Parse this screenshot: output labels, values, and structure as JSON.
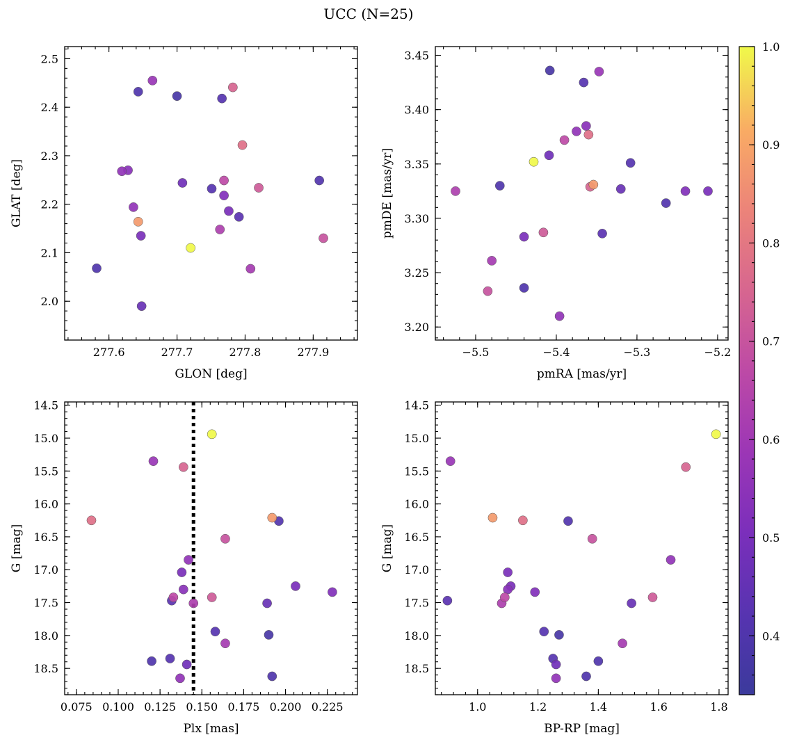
{
  "chart_data": {
    "title": "UCC (N=25)",
    "type": "scatter",
    "colormap": "plasma",
    "colorbar": {
      "range": [
        0.34,
        1.0
      ],
      "ticks": [
        0.4,
        0.5,
        0.6,
        0.7,
        0.8,
        0.9,
        1.0
      ],
      "tick_labels": [
        "0.4",
        "0.5",
        "0.6",
        "0.7",
        "0.8",
        "0.9",
        "1.0"
      ]
    },
    "stars": [
      {
        "glon": 277.582,
        "glat": 2.068,
        "pmra": -5.44,
        "pmde": 3.236,
        "plx": 0.12,
        "g": 18.39,
        "bprp": 1.4,
        "p": 0.4
      },
      {
        "glon": 277.643,
        "glat": 2.432,
        "pmra": -5.47,
        "pmde": 3.33,
        "plx": 0.192,
        "g": 18.62,
        "bprp": 1.36,
        "p": 0.4
      },
      {
        "glon": 277.7,
        "glat": 2.423,
        "pmra": -5.408,
        "pmde": 3.436,
        "plx": 0.19,
        "g": 17.99,
        "bprp": 1.27,
        "p": 0.38
      },
      {
        "glon": 277.766,
        "glat": 2.418,
        "pmra": -5.366,
        "pmde": 3.425,
        "plx": 0.131,
        "g": 18.35,
        "bprp": 1.25,
        "p": 0.42
      },
      {
        "glon": 277.751,
        "glat": 2.232,
        "pmra": -5.308,
        "pmde": 3.351,
        "plx": 0.158,
        "g": 17.94,
        "bprp": 1.22,
        "p": 0.42
      },
      {
        "glon": 277.909,
        "glat": 2.249,
        "pmra": -5.264,
        "pmde": 3.314,
        "plx": 0.196,
        "g": 16.26,
        "bprp": 1.3,
        "p": 0.41
      },
      {
        "glon": 277.791,
        "glat": 2.174,
        "pmra": -5.343,
        "pmde": 3.286,
        "plx": 0.132,
        "g": 17.47,
        "bprp": 0.9,
        "p": 0.43
      },
      {
        "glon": 277.648,
        "glat": 1.99,
        "pmra": -5.32,
        "pmde": 3.327,
        "plx": 0.189,
        "g": 17.51,
        "bprp": 1.51,
        "p": 0.46
      },
      {
        "glon": 277.708,
        "glat": 2.244,
        "pmra": -5.409,
        "pmde": 3.358,
        "plx": 0.141,
        "g": 18.44,
        "bprp": 1.26,
        "p": 0.48
      },
      {
        "glon": 277.647,
        "glat": 2.135,
        "pmra": -5.44,
        "pmde": 3.283,
        "plx": 0.138,
        "g": 17.04,
        "bprp": 1.1,
        "p": 0.5
      },
      {
        "glon": 277.776,
        "glat": 2.186,
        "pmra": -5.212,
        "pmde": 3.325,
        "plx": 0.206,
        "g": 17.25,
        "bprp": 1.11,
        "p": 0.5
      },
      {
        "glon": 277.769,
        "glat": 2.218,
        "pmra": -5.24,
        "pmde": 3.325,
        "plx": 0.228,
        "g": 17.34,
        "bprp": 1.19,
        "p": 0.52
      },
      {
        "glon": 277.628,
        "glat": 2.27,
        "pmra": -5.363,
        "pmde": 3.385,
        "plx": 0.139,
        "g": 17.3,
        "bprp": 1.1,
        "p": 0.54
      },
      {
        "glon": 277.636,
        "glat": 2.194,
        "pmra": -5.396,
        "pmde": 3.21,
        "plx": 0.137,
        "g": 18.65,
        "bprp": 1.26,
        "p": 0.56
      },
      {
        "glon": 277.619,
        "glat": 2.268,
        "pmra": -5.375,
        "pmde": 3.38,
        "plx": 0.142,
        "g": 16.85,
        "bprp": 1.64,
        "p": 0.56
      },
      {
        "glon": 277.664,
        "glat": 2.455,
        "pmra": -5.347,
        "pmde": 3.435,
        "plx": 0.121,
        "g": 15.35,
        "bprp": 0.91,
        "p": 0.58
      },
      {
        "glon": 277.808,
        "glat": 2.067,
        "pmra": -5.48,
        "pmde": 3.261,
        "plx": 0.164,
        "g": 18.12,
        "bprp": 1.48,
        "p": 0.61
      },
      {
        "glon": 277.763,
        "glat": 2.148,
        "pmra": -5.525,
        "pmde": 3.325,
        "plx": 0.145,
        "g": 17.51,
        "bprp": 1.08,
        "p": 0.63
      },
      {
        "glon": 277.769,
        "glat": 2.249,
        "pmra": -5.39,
        "pmde": 3.372,
        "plx": 0.133,
        "g": 17.42,
        "bprp": 1.09,
        "p": 0.67
      },
      {
        "glon": 277.915,
        "glat": 2.13,
        "pmra": -5.485,
        "pmde": 3.233,
        "plx": 0.164,
        "g": 16.53,
        "bprp": 1.38,
        "p": 0.7
      },
      {
        "glon": 277.82,
        "glat": 2.234,
        "pmra": -5.416,
        "pmde": 3.287,
        "plx": 0.156,
        "g": 17.42,
        "bprp": 1.58,
        "p": 0.72
      },
      {
        "glon": 277.782,
        "glat": 2.441,
        "pmra": -5.358,
        "pmde": 3.329,
        "plx": 0.139,
        "g": 15.44,
        "bprp": 1.69,
        "p": 0.75
      },
      {
        "glon": 277.796,
        "glat": 2.322,
        "pmra": -5.36,
        "pmde": 3.377,
        "plx": 0.084,
        "g": 16.25,
        "bprp": 1.15,
        "p": 0.78
      },
      {
        "glon": 277.643,
        "glat": 2.164,
        "pmra": -5.354,
        "pmde": 3.331,
        "plx": 0.192,
        "g": 16.21,
        "bprp": 1.05,
        "p": 0.88
      },
      {
        "glon": 277.72,
        "glat": 2.11,
        "pmra": -5.428,
        "pmde": 3.352,
        "plx": 0.156,
        "g": 14.94,
        "bprp": 1.79,
        "p": 1.0
      }
    ],
    "panels": [
      {
        "id": "glon-glat",
        "x_key": "glon",
        "y_key": "glat",
        "xlabel": "GLON [deg]",
        "ylabel": "GLAT [deg]",
        "xlim": [
          277.535,
          277.965
        ],
        "ylim": [
          1.92,
          2.525
        ],
        "y_inverted": false,
        "xticks": [
          277.6,
          277.7,
          277.8,
          277.9
        ],
        "xtick_labels": [
          "277.6",
          "277.7",
          "277.8",
          "277.9"
        ],
        "xminor": 0.02,
        "yticks": [
          2.0,
          2.1,
          2.2,
          2.3,
          2.4,
          2.5
        ],
        "ytick_labels": [
          "2.0",
          "2.1",
          "2.2",
          "2.3",
          "2.4",
          "2.5"
        ],
        "yminor": 0.02
      },
      {
        "id": "pmra-pmde",
        "x_key": "pmra",
        "y_key": "pmde",
        "xlabel": "pmRA [mas/yr]",
        "ylabel": "pmDE [mas/yr]",
        "xlim": [
          -5.55,
          -5.187
        ],
        "ylim": [
          3.188,
          3.458
        ],
        "y_inverted": false,
        "xticks": [
          -5.5,
          -5.4,
          -5.3,
          -5.2
        ],
        "xtick_labels": [
          "−5.5",
          "−5.4",
          "−5.3",
          "−5.2"
        ],
        "xminor": 0.02,
        "yticks": [
          3.2,
          3.25,
          3.3,
          3.35,
          3.4,
          3.45
        ],
        "ytick_labels": [
          "3.20",
          "3.25",
          "3.30",
          "3.35",
          "3.40",
          "3.45"
        ],
        "yminor": 0.01
      },
      {
        "id": "plx-g",
        "x_key": "plx",
        "y_key": "g",
        "xlabel": "Plx [mas]",
        "ylabel": "G [mag]",
        "xlim": [
          0.068,
          0.243
        ],
        "ylim": [
          14.45,
          18.9
        ],
        "y_inverted": true,
        "vline": 0.145,
        "xticks": [
          0.075,
          0.1,
          0.125,
          0.15,
          0.175,
          0.2,
          0.225
        ],
        "xtick_labels": [
          "0.075",
          "0.100",
          "0.125",
          "0.150",
          "0.175",
          "0.200",
          "0.225"
        ],
        "xminor": 0.005,
        "yticks": [
          14.5,
          15.0,
          15.5,
          16.0,
          16.5,
          17.0,
          17.5,
          18.0,
          18.5
        ],
        "ytick_labels": [
          "14.5",
          "15.0",
          "15.5",
          "16.0",
          "16.5",
          "17.0",
          "17.5",
          "18.0",
          "18.5"
        ],
        "yminor": 0.1
      },
      {
        "id": "bprp-g",
        "x_key": "bprp",
        "y_key": "g",
        "xlabel": "BP-RP [mag]",
        "ylabel": "G [mag]",
        "xlim": [
          0.86,
          1.83
        ],
        "ylim": [
          14.45,
          18.9
        ],
        "y_inverted": true,
        "xticks": [
          1.0,
          1.2,
          1.4,
          1.6,
          1.8
        ],
        "xtick_labels": [
          "1.0",
          "1.2",
          "1.4",
          "1.6",
          "1.8"
        ],
        "xminor": 0.04,
        "yticks": [
          14.5,
          15.0,
          15.5,
          16.0,
          16.5,
          17.0,
          17.5,
          18.0,
          18.5
        ],
        "ytick_labels": [
          "14.5",
          "15.0",
          "15.5",
          "16.0",
          "16.5",
          "17.0",
          "17.5",
          "18.0",
          "18.5"
        ],
        "yminor": 0.1
      }
    ]
  }
}
